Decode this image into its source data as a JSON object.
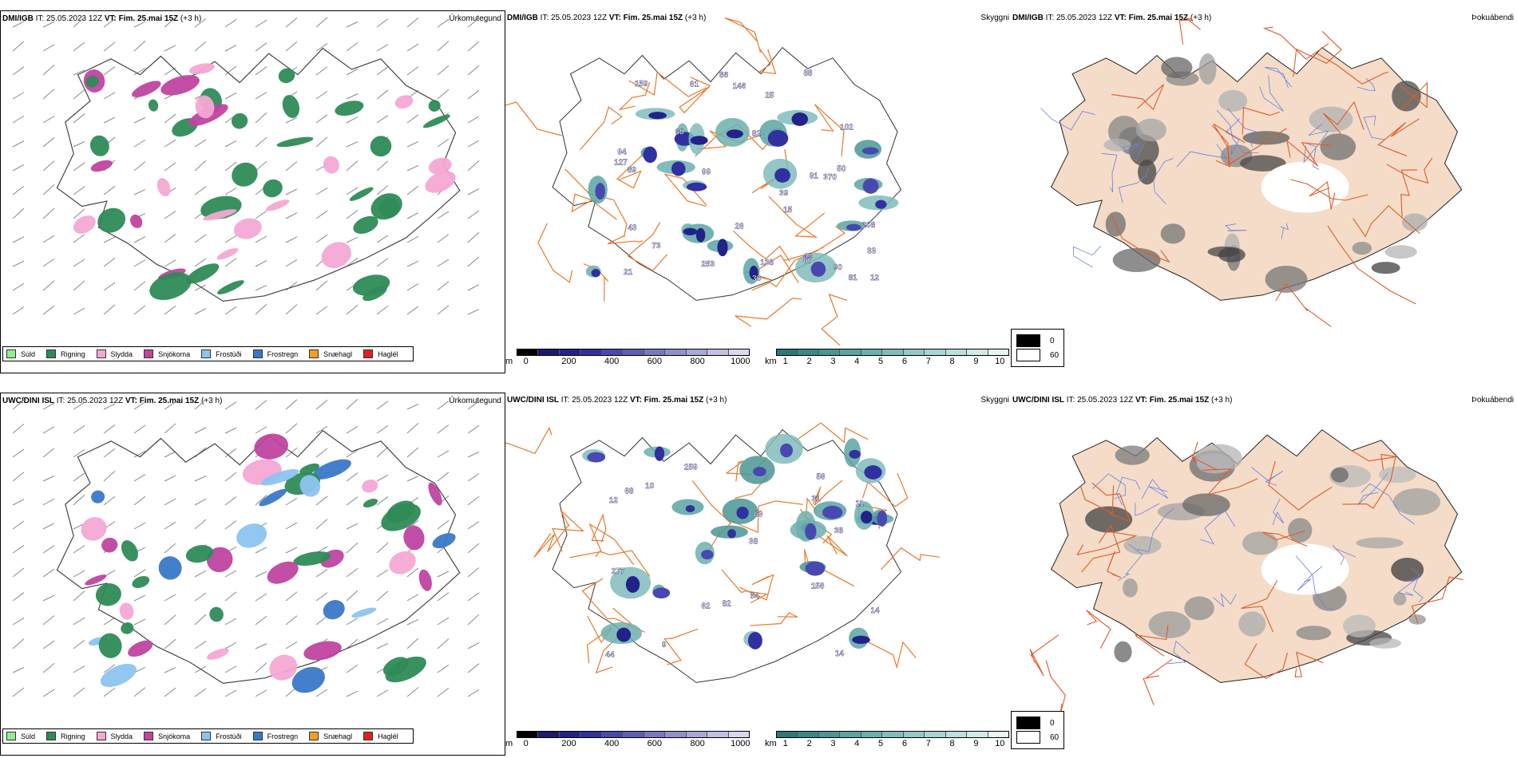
{
  "colors": {
    "land_outline": "#444444",
    "roads": "#e8782a",
    "cloud_land": "#f4dcc8",
    "rivers": "#6a7fe0",
    "wind": "#888888"
  },
  "rows": [
    {
      "model": "DMI/IGB",
      "precip": {
        "it_label": "IT:",
        "it": "25.05.2023 12Z",
        "vt": "VT: Fim. 25.mai 15Z",
        "lead": "(+3 h)",
        "field": "Úrkomutegund"
      },
      "ceiling": {
        "it_label": "IT:",
        "it": "25.05.2023 12Z",
        "vt": "VT: Fim. 25.mai 15Z",
        "lead": "(+3 h)",
        "field": "Skyggni"
      },
      "fog": {
        "it_label": "IT:",
        "it": "25.05.2023 12Z",
        "vt": "VT: Fim. 25.mai 15Z",
        "lead": "(+3 h)",
        "field": "Þokuábendi"
      }
    },
    {
      "model": "UWC/DINI ISL",
      "precip": {
        "it_label": "IT:",
        "it": "25.05.2023 12Z",
        "vt": "VT: Fim. 25.mai 15Z",
        "lead": "(+3 h)",
        "field": "Úrkomutegund"
      },
      "ceiling": {
        "it_label": "IT:",
        "it": "25.05.2023 12Z",
        "vt": "VT: Fim. 25.mai 15Z",
        "lead": "(+3 h)",
        "field": "Skyggni"
      },
      "fog": {
        "it_label": "IT:",
        "it": "25.05.2023 12Z",
        "vt": "VT: Fim. 25.mai 15Z",
        "lead": "(+3 h)",
        "field": "Þokuábendi"
      }
    }
  ],
  "precip_legend": [
    {
      "label": "Súld",
      "color": "#90ee90"
    },
    {
      "label": "Rigning",
      "color": "#2e8b57"
    },
    {
      "label": "Slydda",
      "color": "#f4a8d4"
    },
    {
      "label": "Snjókoma",
      "color": "#c044a0"
    },
    {
      "label": "Frostúði",
      "color": "#8cc4f0"
    },
    {
      "label": "Frostregn",
      "color": "#3a78c8"
    },
    {
      "label": "Snæhagl",
      "color": "#f0a020"
    },
    {
      "label": "Haglél",
      "color": "#e02020"
    }
  ],
  "cloud_base_bar": {
    "unit": "m",
    "ticks": [
      "0",
      "200",
      "400",
      "600",
      "800",
      "1000"
    ],
    "colors": [
      "#000000",
      "#1a1a70",
      "#22228a",
      "#3030a0",
      "#4848b0",
      "#5e5eb8",
      "#7878c4",
      "#9090cc",
      "#a8a8d8",
      "#c0c0e4",
      "#d8d8f0"
    ]
  },
  "visibility_bar": {
    "unit": "km",
    "ticks": [
      "1",
      "2",
      "3",
      "4",
      "5",
      "6",
      "7",
      "8",
      "9",
      "10"
    ],
    "colors": [
      "#2a7a78",
      "#3a8886",
      "#4a9694",
      "#5aa4a2",
      "#6cb0ae",
      "#80bcba",
      "#94c8c6",
      "#a8d4d2",
      "#bcdfdd",
      "#d0eae8",
      "#e8f4f4"
    ]
  },
  "cloud_legend": [
    {
      "label": "0",
      "color": "#000000"
    },
    {
      "label": "60",
      "color": "#ffffff"
    }
  ],
  "labels_top": [
    "99",
    "89",
    "12",
    "90",
    "21",
    "46",
    "73",
    "88",
    "25",
    "91",
    "253",
    "81",
    "102",
    "61",
    "33",
    "50",
    "208",
    "159",
    "127",
    "82",
    "67",
    "370",
    "146",
    "43",
    "86",
    "94",
    "138",
    "60",
    "39",
    "26",
    "15",
    "30"
  ],
  "labels_bottom": [
    "63",
    "62",
    "11",
    "12",
    "14",
    "54",
    "38",
    "68",
    "277",
    "259",
    "82",
    "31",
    "156",
    "9",
    "44",
    "38",
    "56",
    "10",
    "14"
  ]
}
